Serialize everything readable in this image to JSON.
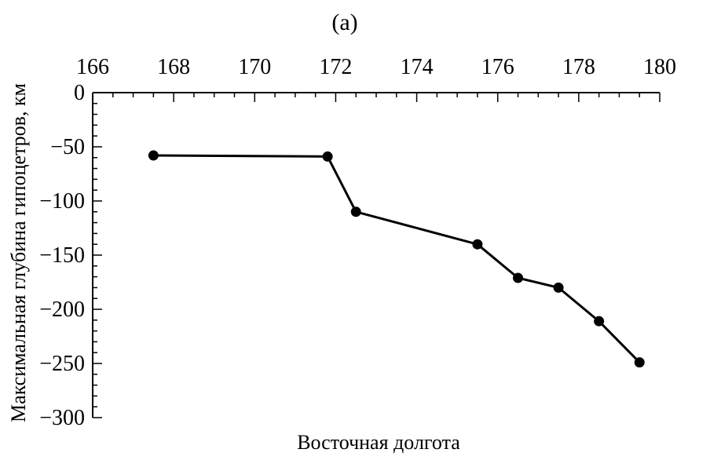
{
  "chart_data": {
    "type": "line",
    "panel_label": "(a)",
    "title": "",
    "xlabel": "Восточная долгота",
    "ylabel": "Максимальная глубина гипоцетров, км",
    "x_axis_position": "top",
    "xlim": [
      166,
      180
    ],
    "ylim": [
      -300,
      0
    ],
    "x_ticks": [
      166,
      168,
      170,
      172,
      174,
      176,
      178,
      180
    ],
    "x_tick_labels": [
      "166",
      "168",
      "170",
      "172",
      "174",
      "176",
      "178",
      "180"
    ],
    "y_ticks": [
      0,
      -50,
      -100,
      -150,
      -200,
      -250,
      -300
    ],
    "y_tick_labels": [
      "0",
      "−50",
      "−100",
      "−150",
      "−200",
      "−250",
      "−300"
    ],
    "grid": false,
    "series": [
      {
        "x": [
          167.5,
          171.8,
          172.5,
          175.5,
          176.5,
          177.5,
          178.5,
          179.5
        ],
        "y": [
          -58,
          -59,
          -110,
          -140,
          -171,
          -180,
          -211,
          -249
        ],
        "color": "#000000",
        "marker": "circle"
      }
    ]
  }
}
